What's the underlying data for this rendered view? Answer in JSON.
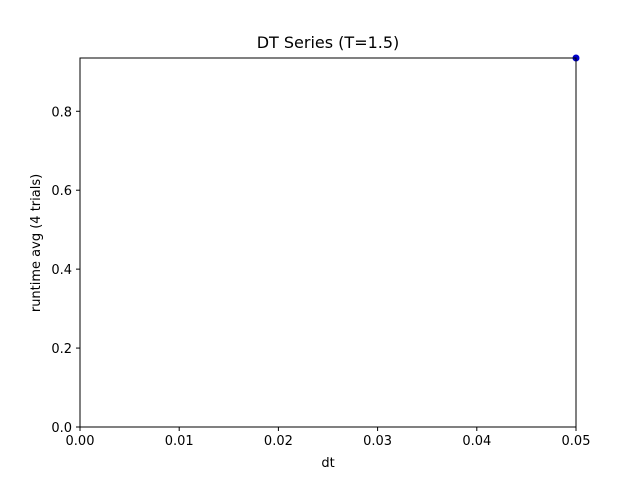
{
  "chart_data": {
    "type": "scatter",
    "title": "DT Series (T=1.5)",
    "xlabel": "dt",
    "ylabel": "runtime avg (4 trials)",
    "xlim": [
      0.0,
      0.05
    ],
    "ylim": [
      0.0,
      0.935
    ],
    "x_ticks": [
      0.0,
      0.01,
      0.02,
      0.03,
      0.04,
      0.05
    ],
    "x_tick_labels": [
      "0.00",
      "0.01",
      "0.02",
      "0.03",
      "0.04",
      "0.05"
    ],
    "y_ticks": [
      0.0,
      0.2,
      0.4,
      0.6,
      0.8
    ],
    "y_tick_labels": [
      "0.0",
      "0.2",
      "0.4",
      "0.6",
      "0.8"
    ],
    "grid": false,
    "series": [
      {
        "x": [
          0.05
        ],
        "y": [
          0.935
        ],
        "color": "#0000cc"
      }
    ]
  }
}
